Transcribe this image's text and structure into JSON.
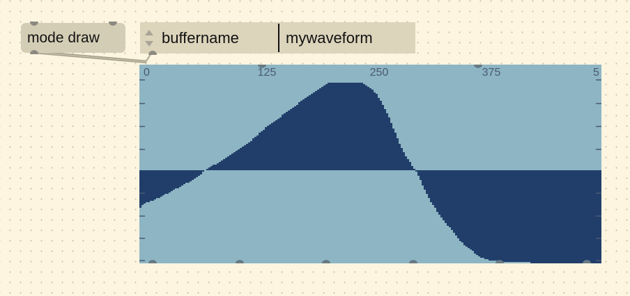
{
  "message_box": {
    "label": "mode draw"
  },
  "attrui": {
    "attribute": "buffername",
    "value": "mywaveform"
  },
  "waveform": {
    "ruler_labels": [
      "0",
      "125",
      "250",
      "375",
      "5"
    ],
    "colors": {
      "background": "#8db5c3",
      "fill": "#213e6a",
      "ticks": "#4a5a75"
    }
  }
}
